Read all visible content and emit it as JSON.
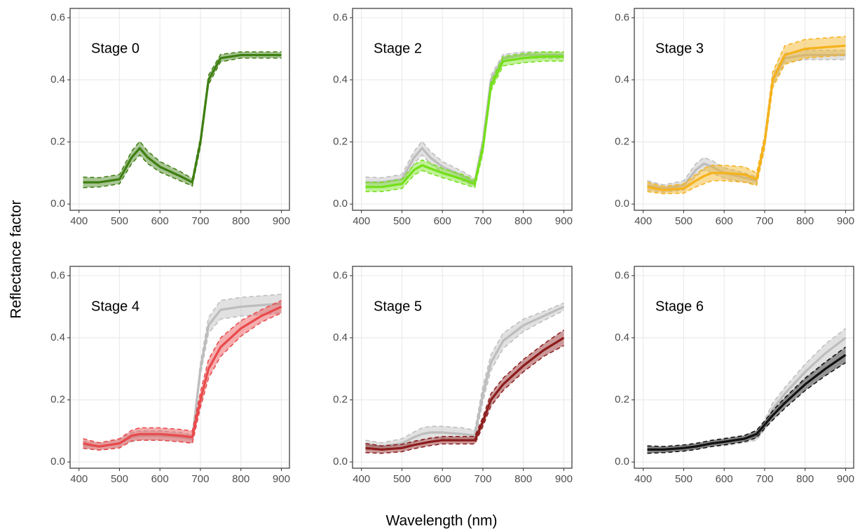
{
  "ylabel": "Reflectance factor",
  "xlabel": "Wavelength (nm)",
  "chart_data": [
    {
      "type": "line",
      "annotation": "Stage 0",
      "x": [
        410,
        450,
        500,
        530,
        550,
        570,
        600,
        650,
        680,
        700,
        720,
        750,
        800,
        850,
        900
      ],
      "xlim": [
        378,
        920
      ],
      "ylim": [
        -0.02,
        0.63
      ],
      "xticks": [
        400,
        500,
        600,
        700,
        800,
        900
      ],
      "yticks": [
        {
          "value": 0,
          "label": "0.0"
        },
        0.2,
        0.4,
        0.6
      ],
      "grid": true,
      "series": [
        {
          "color": "#3f7f12",
          "values": [
            0.07,
            0.07,
            0.08,
            0.15,
            0.18,
            0.15,
            0.12,
            0.09,
            0.07,
            0.2,
            0.4,
            0.47,
            0.48,
            0.48,
            0.48
          ],
          "errors": [
            0.017,
            0.015,
            0.015,
            0.02,
            0.022,
            0.02,
            0.017,
            0.015,
            0.012,
            0.015,
            0.015,
            0.012,
            0.01,
            0.01,
            0.01
          ]
        }
      ]
    },
    {
      "type": "line",
      "annotation": "Stage 2",
      "x": [
        410,
        450,
        500,
        530,
        550,
        570,
        600,
        650,
        680,
        700,
        720,
        750,
        800,
        850,
        900
      ],
      "xlim": [
        378,
        920
      ],
      "ylim": [
        -0.02,
        0.63
      ],
      "xticks": [
        400,
        500,
        600,
        700,
        800,
        900
      ],
      "yticks": [
        {
          "value": 0,
          "label": "0.0"
        },
        0.2,
        0.4,
        0.6
      ],
      "grid": true,
      "series": [
        {
          "color": "#bdbdbd",
          "values": [
            0.07,
            0.07,
            0.08,
            0.15,
            0.18,
            0.15,
            0.12,
            0.09,
            0.07,
            0.2,
            0.4,
            0.47,
            0.48,
            0.48,
            0.48
          ],
          "errors": [
            0.017,
            0.015,
            0.015,
            0.02,
            0.022,
            0.02,
            0.017,
            0.015,
            0.012,
            0.015,
            0.015,
            0.012,
            0.01,
            0.01,
            0.01
          ]
        },
        {
          "color": "#74e01a",
          "values": [
            0.055,
            0.055,
            0.065,
            0.11,
            0.125,
            0.115,
            0.1,
            0.08,
            0.065,
            0.18,
            0.38,
            0.46,
            0.47,
            0.475,
            0.475
          ],
          "errors": [
            0.015,
            0.015,
            0.015,
            0.017,
            0.017,
            0.017,
            0.015,
            0.015,
            0.012,
            0.015,
            0.015,
            0.015,
            0.015,
            0.015,
            0.015
          ]
        }
      ]
    },
    {
      "type": "line",
      "annotation": "Stage 3",
      "x": [
        410,
        450,
        500,
        530,
        550,
        570,
        600,
        650,
        680,
        700,
        720,
        750,
        800,
        850,
        900
      ],
      "xlim": [
        378,
        920
      ],
      "ylim": [
        -0.02,
        0.63
      ],
      "xticks": [
        400,
        500,
        600,
        700,
        800,
        900
      ],
      "yticks": [
        {
          "value": 0,
          "label": "0.0"
        },
        0.2,
        0.4,
        0.6
      ],
      "grid": true,
      "series": [
        {
          "color": "#bdbdbd",
          "values": [
            0.06,
            0.05,
            0.06,
            0.11,
            0.13,
            0.12,
            0.1,
            0.085,
            0.075,
            0.2,
            0.4,
            0.47,
            0.48,
            0.48,
            0.48
          ],
          "errors": [
            0.015,
            0.012,
            0.015,
            0.02,
            0.02,
            0.02,
            0.017,
            0.015,
            0.012,
            0.015,
            0.015,
            0.015,
            0.015,
            0.015,
            0.015
          ]
        },
        {
          "color": "#f5b21c",
          "values": [
            0.055,
            0.045,
            0.05,
            0.075,
            0.09,
            0.1,
            0.1,
            0.095,
            0.08,
            0.2,
            0.4,
            0.48,
            0.5,
            0.505,
            0.51
          ],
          "errors": [
            0.015,
            0.012,
            0.015,
            0.02,
            0.025,
            0.025,
            0.025,
            0.025,
            0.02,
            0.02,
            0.025,
            0.03,
            0.03,
            0.03,
            0.03
          ]
        }
      ]
    },
    {
      "type": "line",
      "annotation": "Stage 4",
      "x": [
        410,
        450,
        500,
        530,
        550,
        570,
        600,
        650,
        680,
        700,
        720,
        750,
        800,
        850,
        900
      ],
      "xlim": [
        378,
        920
      ],
      "ylim": [
        -0.02,
        0.63
      ],
      "xticks": [
        400,
        500,
        600,
        700,
        800,
        900
      ],
      "yticks": [
        {
          "value": 0,
          "label": "0.0"
        },
        0.2,
        0.4,
        0.6
      ],
      "grid": true,
      "series": [
        {
          "color": "#bdbdbd",
          "values": [
            0.055,
            0.05,
            0.06,
            0.08,
            0.085,
            0.085,
            0.085,
            0.08,
            0.075,
            0.3,
            0.44,
            0.49,
            0.5,
            0.505,
            0.51
          ],
          "errors": [
            0.012,
            0.012,
            0.012,
            0.015,
            0.015,
            0.015,
            0.015,
            0.015,
            0.012,
            0.02,
            0.025,
            0.03,
            0.03,
            0.03,
            0.03
          ]
        },
        {
          "color": "#e84a4c",
          "values": [
            0.06,
            0.05,
            0.06,
            0.085,
            0.09,
            0.09,
            0.09,
            0.085,
            0.08,
            0.2,
            0.3,
            0.37,
            0.43,
            0.47,
            0.5
          ],
          "errors": [
            0.015,
            0.012,
            0.015,
            0.017,
            0.02,
            0.02,
            0.02,
            0.02,
            0.02,
            0.025,
            0.03,
            0.03,
            0.025,
            0.02,
            0.02
          ]
        }
      ]
    },
    {
      "type": "line",
      "annotation": "Stage 5",
      "x": [
        410,
        450,
        500,
        530,
        550,
        570,
        600,
        650,
        680,
        700,
        720,
        750,
        800,
        850,
        900
      ],
      "xlim": [
        378,
        920
      ],
      "ylim": [
        -0.02,
        0.63
      ],
      "xticks": [
        400,
        500,
        600,
        700,
        800,
        900
      ],
      "yticks": [
        {
          "value": 0,
          "label": "0.0"
        },
        0.2,
        0.4,
        0.6
      ],
      "grid": true,
      "series": [
        {
          "color": "#bdbdbd",
          "values": [
            0.055,
            0.05,
            0.06,
            0.08,
            0.09,
            0.095,
            0.095,
            0.09,
            0.085,
            0.22,
            0.32,
            0.39,
            0.44,
            0.47,
            0.5
          ],
          "errors": [
            0.015,
            0.012,
            0.015,
            0.017,
            0.02,
            0.02,
            0.02,
            0.02,
            0.017,
            0.025,
            0.025,
            0.025,
            0.02,
            0.015,
            0.012
          ]
        },
        {
          "color": "#8c1c1c",
          "values": [
            0.045,
            0.04,
            0.045,
            0.055,
            0.06,
            0.065,
            0.07,
            0.07,
            0.07,
            0.13,
            0.2,
            0.25,
            0.31,
            0.36,
            0.4
          ],
          "errors": [
            0.015,
            0.012,
            0.012,
            0.012,
            0.012,
            0.012,
            0.012,
            0.012,
            0.012,
            0.015,
            0.02,
            0.02,
            0.02,
            0.02,
            0.025
          ]
        }
      ]
    },
    {
      "type": "line",
      "annotation": "Stage 6",
      "x": [
        410,
        450,
        500,
        530,
        550,
        570,
        600,
        650,
        680,
        700,
        720,
        750,
        800,
        850,
        900
      ],
      "xlim": [
        378,
        920
      ],
      "ylim": [
        -0.02,
        0.63
      ],
      "xticks": [
        400,
        500,
        600,
        700,
        800,
        900
      ],
      "yticks": [
        {
          "value": 0,
          "label": "0.0"
        },
        0.2,
        0.4,
        0.6
      ],
      "grid": true,
      "series": [
        {
          "color": "#bdbdbd",
          "values": [
            0.04,
            0.04,
            0.045,
            0.05,
            0.055,
            0.06,
            0.065,
            0.075,
            0.085,
            0.12,
            0.17,
            0.22,
            0.29,
            0.35,
            0.4
          ],
          "errors": [
            0.012,
            0.01,
            0.01,
            0.01,
            0.01,
            0.01,
            0.012,
            0.012,
            0.015,
            0.015,
            0.02,
            0.02,
            0.025,
            0.03,
            0.03
          ]
        },
        {
          "color": "#111111",
          "values": [
            0.04,
            0.04,
            0.045,
            0.05,
            0.055,
            0.06,
            0.065,
            0.075,
            0.09,
            0.12,
            0.15,
            0.19,
            0.25,
            0.3,
            0.345
          ],
          "errors": [
            0.012,
            0.01,
            0.01,
            0.01,
            0.01,
            0.01,
            0.01,
            0.01,
            0.012,
            0.012,
            0.015,
            0.017,
            0.02,
            0.022,
            0.025
          ]
        }
      ]
    }
  ]
}
